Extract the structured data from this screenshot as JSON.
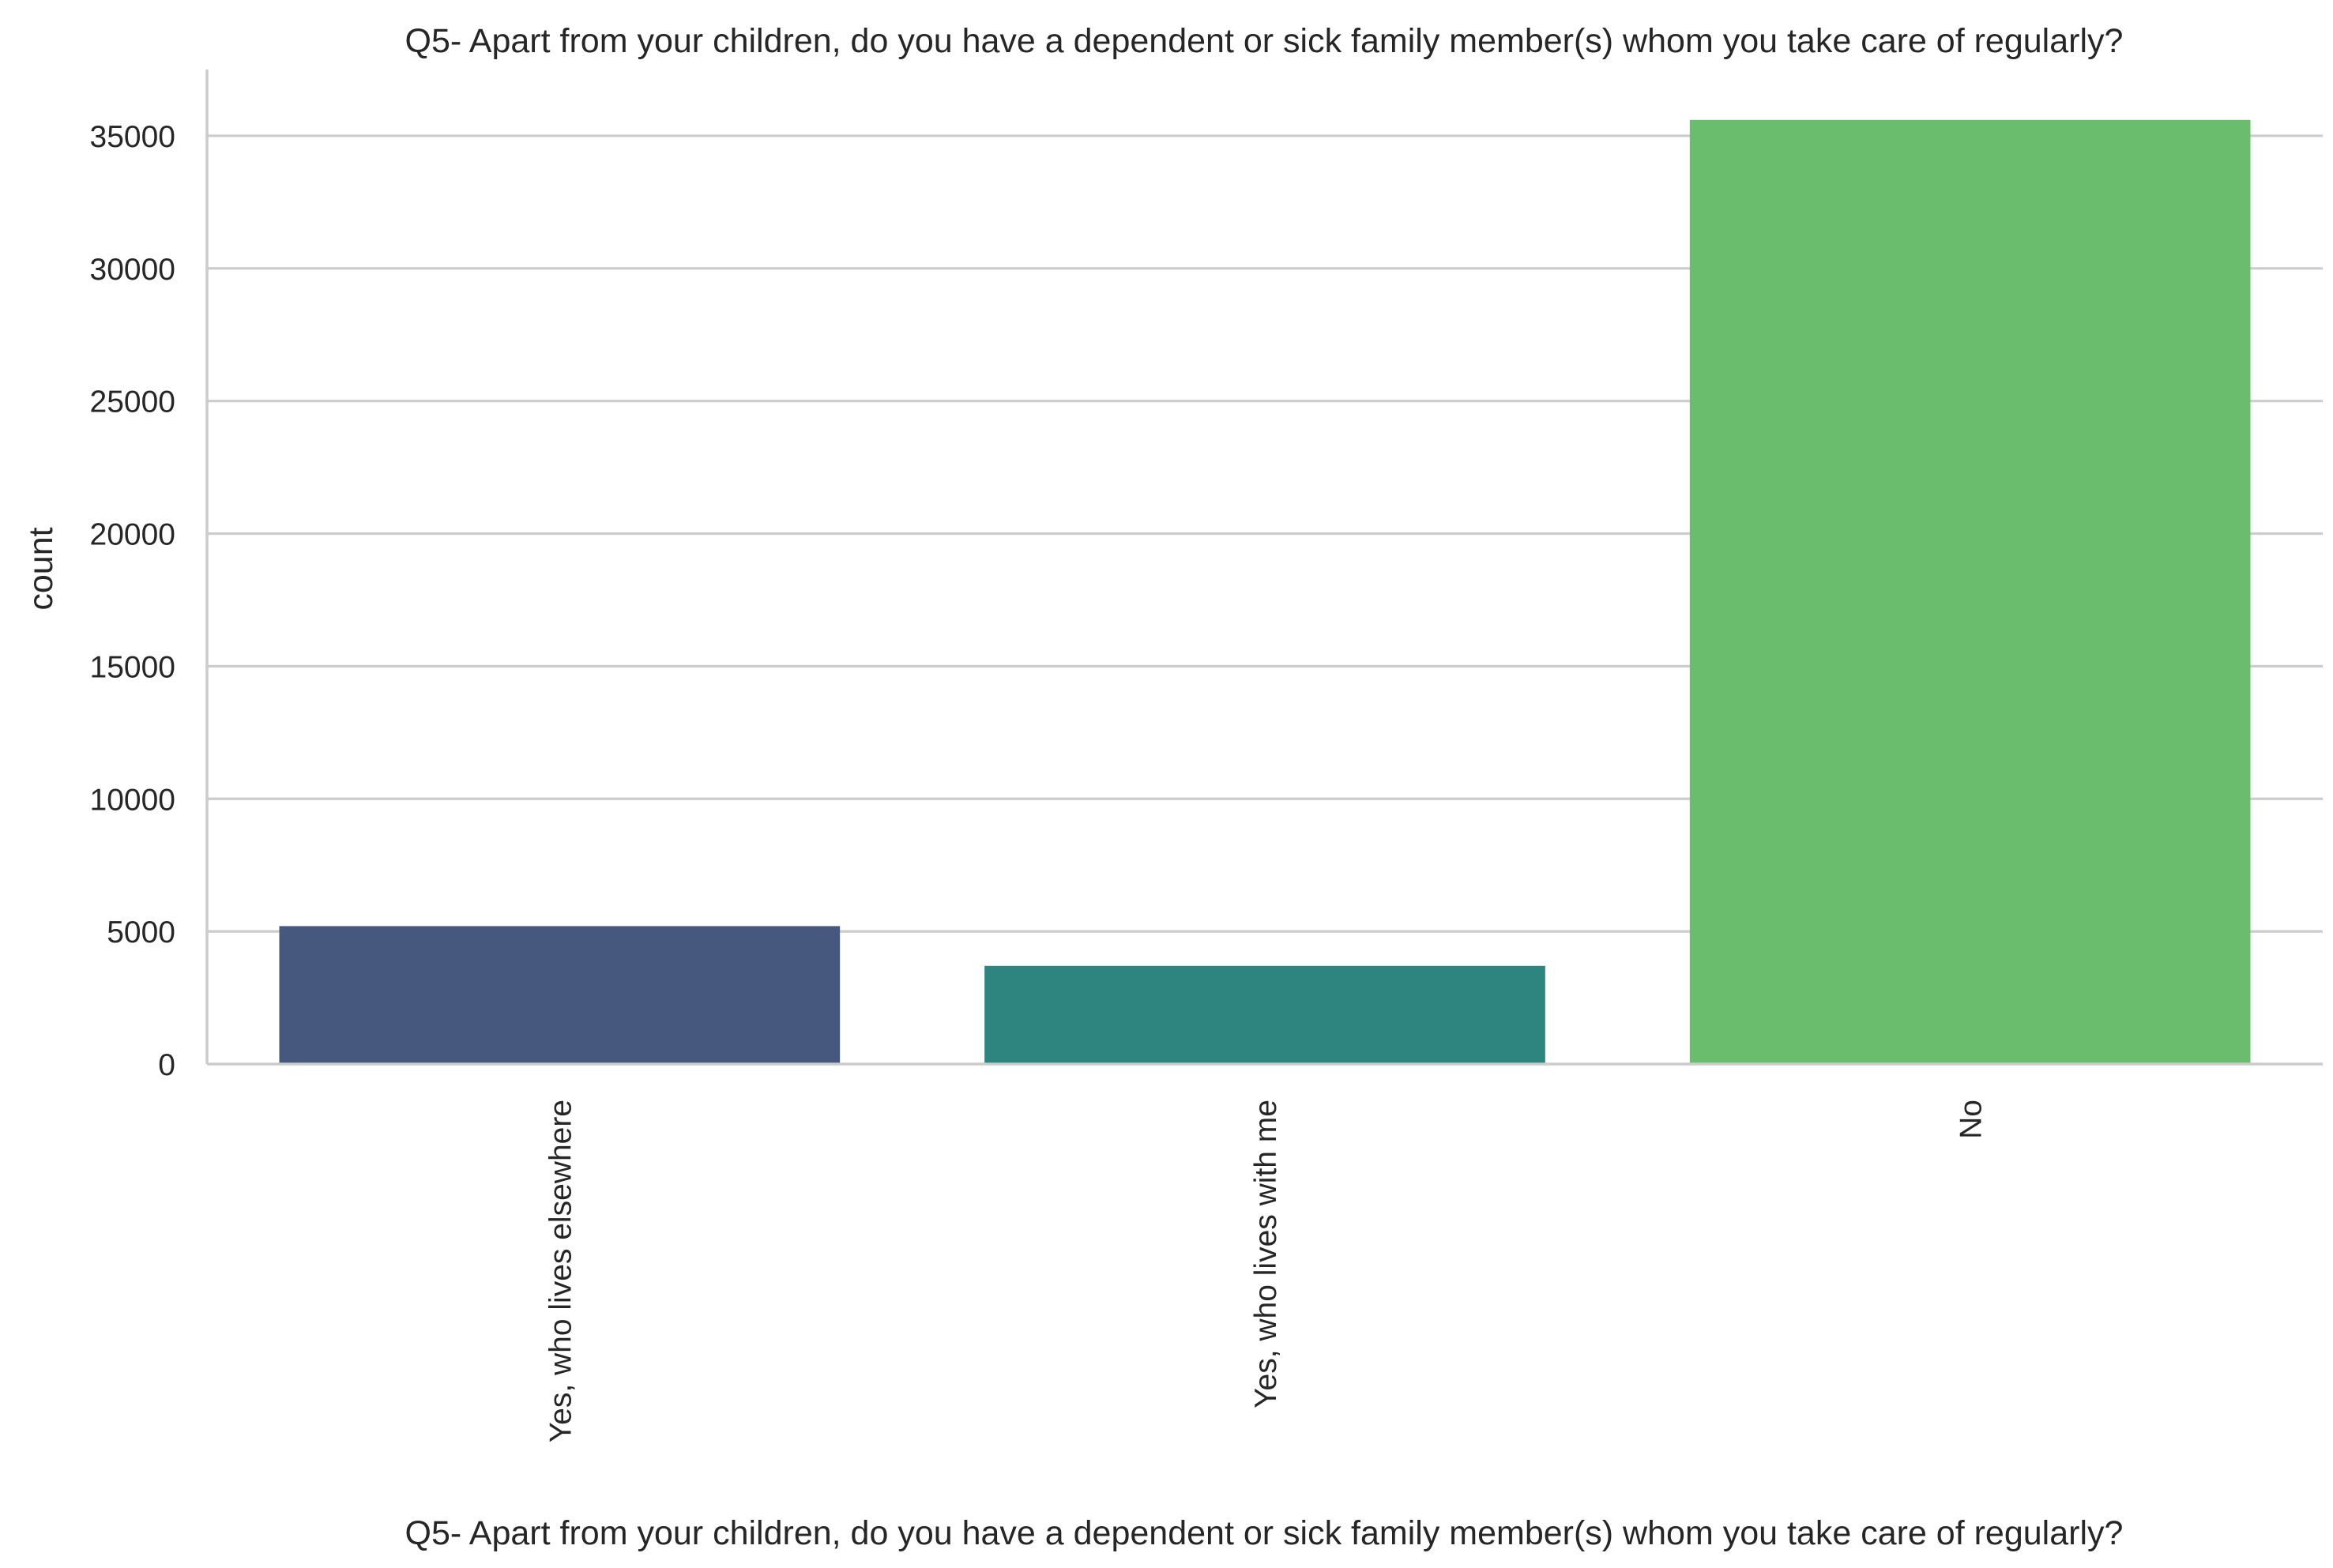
{
  "chart_data": {
    "type": "bar",
    "title": "Q5- Apart from your children, do you have a dependent or sick family member(s) whom you take care of regularly?",
    "xlabel": "Q5- Apart from your children, do you have a dependent or sick family member(s) whom you take care of regularly?",
    "ylabel": "count",
    "categories": [
      "Yes, who lives elsewhere",
      "Yes, who lives with me",
      "No"
    ],
    "values": [
      5200,
      3700,
      35600
    ],
    "colors": [
      "#46587e",
      "#2e847e",
      "#6bbd6e"
    ],
    "ylim": [
      0,
      37500
    ],
    "yticks": [
      0,
      5000,
      10000,
      15000,
      20000,
      25000,
      30000,
      35000
    ],
    "grid": "horizontal",
    "legend": "none"
  }
}
